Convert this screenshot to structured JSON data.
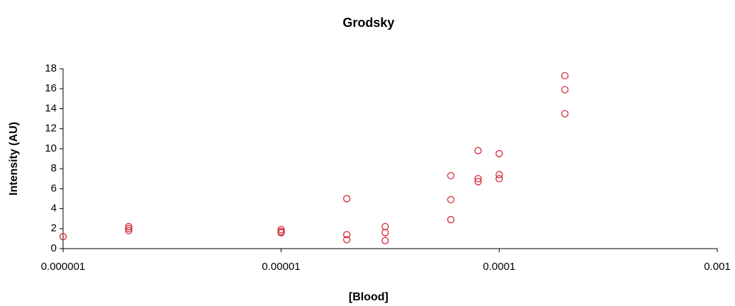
{
  "chart_data": {
    "type": "scatter",
    "title": "Grodsky",
    "x_label": "[Blood]",
    "y_label": "Intensity (AU)",
    "x_log": true,
    "color": "#d42a3a",
    "x": [
      1e-06,
      2e-06,
      2e-06,
      2e-06,
      1e-05,
      1e-05,
      1e-05,
      2e-05,
      2e-05,
      2e-05,
      3e-05,
      3e-05,
      3e-05,
      6e-05,
      6e-05,
      6e-05,
      8e-05,
      8e-05,
      8e-05,
      0.0001,
      0.0001,
      0.0001,
      0.0002,
      0.0002,
      0.0002
    ],
    "values": [
      1.2,
      2.2,
      2.0,
      1.8,
      1.9,
      1.7,
      1.6,
      5.0,
      1.4,
      0.9,
      2.2,
      1.6,
      0.8,
      7.3,
      4.9,
      2.9,
      9.8,
      7.0,
      6.7,
      9.5,
      7.4,
      7.0,
      17.3,
      15.9,
      13.5
    ],
    "xlim": [
      1e-06,
      0.001
    ],
    "xticks": [
      {
        "value": 1e-06,
        "label": "0.000001"
      },
      {
        "value": 1e-05,
        "label": "0.00001"
      },
      {
        "value": 0.0001,
        "label": "0.0001"
      },
      {
        "value": 0.001,
        "label": "0.001"
      }
    ],
    "ylim": [
      0,
      18
    ],
    "yticks": [
      0,
      2,
      4,
      6,
      8,
      10,
      12,
      14,
      16,
      18
    ]
  }
}
